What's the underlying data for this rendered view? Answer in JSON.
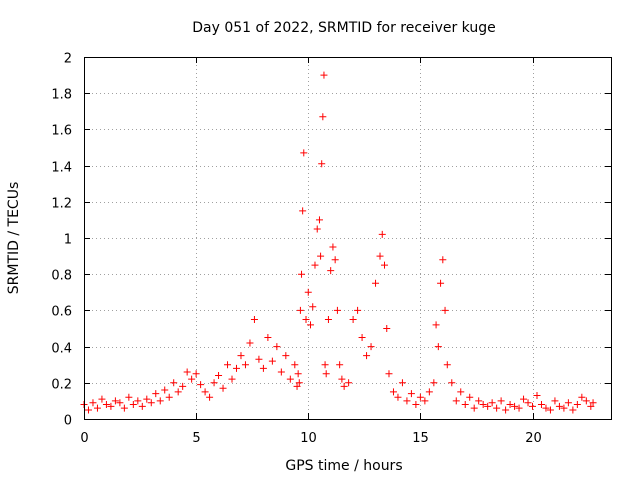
{
  "chart_data": {
    "type": "scatter",
    "title": "Day 051 of 2022, SRMTID for receiver kuge",
    "xlabel": "GPS time / hours",
    "ylabel": "SRMTID / TECUs",
    "xlim": [
      0,
      23.5
    ],
    "ylim": [
      0,
      2
    ],
    "x_ticks": [
      0,
      5,
      10,
      15,
      20
    ],
    "y_ticks": [
      0,
      0.2,
      0.4,
      0.6,
      0.8,
      1,
      1.2,
      1.4,
      1.6,
      1.8,
      2
    ],
    "x_tick_labels": [
      "0",
      "5",
      "10",
      "15",
      "20"
    ],
    "y_tick_labels": [
      "0",
      "0.2",
      "0.4",
      "0.6",
      "0.8",
      "1",
      "1.2",
      "1.4",
      "1.6",
      "1.8",
      "2"
    ],
    "grid": true,
    "marker": "+",
    "color": "#ff0000",
    "series": [
      {
        "name": "SRMTID",
        "x": [
          0.0,
          0.2,
          0.4,
          0.6,
          0.8,
          1.0,
          1.2,
          1.4,
          1.6,
          1.8,
          2.0,
          2.2,
          2.4,
          2.6,
          2.8,
          3.0,
          3.2,
          3.4,
          3.6,
          3.8,
          4.0,
          4.2,
          4.4,
          4.6,
          4.8,
          5.0,
          5.2,
          5.4,
          5.6,
          5.8,
          6.0,
          6.2,
          6.4,
          6.6,
          6.8,
          7.0,
          7.2,
          7.4,
          7.6,
          7.8,
          8.0,
          8.2,
          8.4,
          8.6,
          8.8,
          9.0,
          9.2,
          9.4,
          9.5,
          9.55,
          9.6,
          9.65,
          9.7,
          9.75,
          9.8,
          9.9,
          10.0,
          10.1,
          10.2,
          10.3,
          10.4,
          10.5,
          10.55,
          10.6,
          10.65,
          10.7,
          10.75,
          10.8,
          10.9,
          11.0,
          11.1,
          11.2,
          11.3,
          11.4,
          11.5,
          11.6,
          11.8,
          12.0,
          12.2,
          12.4,
          12.6,
          12.8,
          13.0,
          13.2,
          13.3,
          13.4,
          13.5,
          13.6,
          13.8,
          14.0,
          14.2,
          14.4,
          14.6,
          14.8,
          15.0,
          15.2,
          15.4,
          15.6,
          15.7,
          15.8,
          15.9,
          16.0,
          16.1,
          16.2,
          16.4,
          16.6,
          16.8,
          17.0,
          17.2,
          17.4,
          17.6,
          17.8,
          18.0,
          18.2,
          18.4,
          18.6,
          18.8,
          19.0,
          19.2,
          19.4,
          19.6,
          19.8,
          20.0,
          20.2,
          20.4,
          20.6,
          20.8,
          21.0,
          21.2,
          21.4,
          21.6,
          21.8,
          22.0,
          22.2,
          22.4,
          22.6,
          22.7
        ],
        "y": [
          0.08,
          0.05,
          0.09,
          0.06,
          0.11,
          0.08,
          0.07,
          0.1,
          0.09,
          0.06,
          0.12,
          0.08,
          0.1,
          0.07,
          0.11,
          0.09,
          0.14,
          0.1,
          0.16,
          0.12,
          0.2,
          0.15,
          0.18,
          0.26,
          0.22,
          0.25,
          0.19,
          0.15,
          0.12,
          0.2,
          0.24,
          0.17,
          0.3,
          0.22,
          0.28,
          0.35,
          0.3,
          0.42,
          0.55,
          0.33,
          0.28,
          0.45,
          0.32,
          0.4,
          0.26,
          0.35,
          0.22,
          0.3,
          0.18,
          0.25,
          0.2,
          0.6,
          0.8,
          1.15,
          1.47,
          0.55,
          0.7,
          0.52,
          0.62,
          0.85,
          1.05,
          1.1,
          0.9,
          1.41,
          1.67,
          1.9,
          0.3,
          0.25,
          0.55,
          0.82,
          0.95,
          0.88,
          0.6,
          0.3,
          0.22,
          0.18,
          0.2,
          0.55,
          0.6,
          0.45,
          0.35,
          0.4,
          0.75,
          0.9,
          1.02,
          0.85,
          0.5,
          0.25,
          0.15,
          0.12,
          0.2,
          0.1,
          0.14,
          0.08,
          0.12,
          0.1,
          0.15,
          0.2,
          0.52,
          0.4,
          0.75,
          0.88,
          0.6,
          0.3,
          0.2,
          0.1,
          0.15,
          0.08,
          0.12,
          0.06,
          0.1,
          0.08,
          0.07,
          0.09,
          0.06,
          0.1,
          0.05,
          0.08,
          0.07,
          0.06,
          0.11,
          0.09,
          0.07,
          0.13,
          0.08,
          0.06,
          0.05,
          0.1,
          0.07,
          0.06,
          0.09,
          0.05,
          0.08,
          0.12,
          0.1,
          0.07,
          0.09
        ]
      }
    ]
  }
}
